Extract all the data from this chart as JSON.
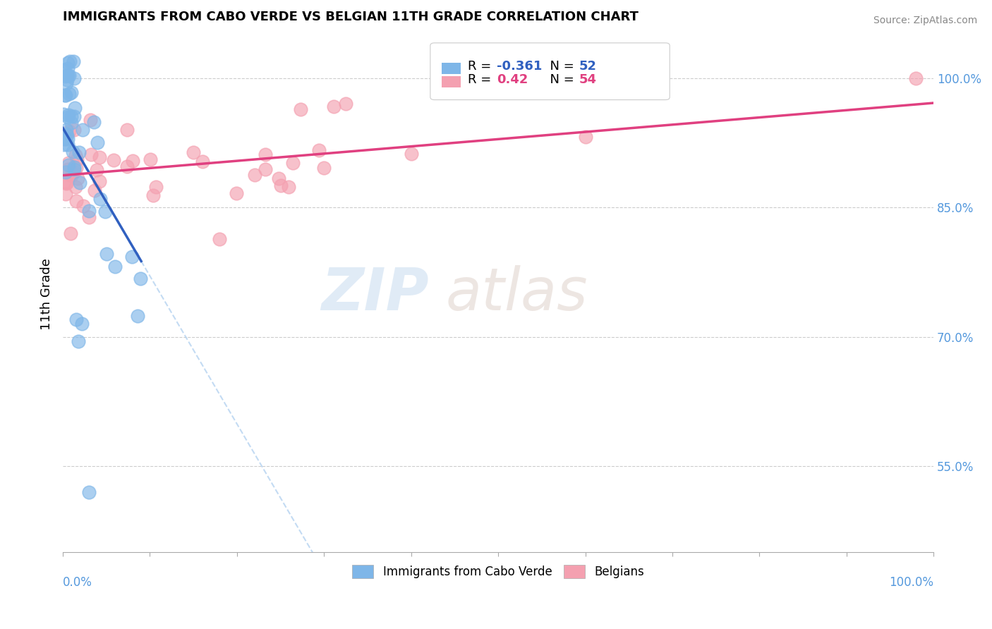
{
  "title": "IMMIGRANTS FROM CABO VERDE VS BELGIAN 11TH GRADE CORRELATION CHART",
  "source": "Source: ZipAtlas.com",
  "ylabel": "11th Grade",
  "ylabel_right_ticks": [
    0.55,
    0.7,
    0.85,
    1.0
  ],
  "ylabel_right_labels": [
    "55.0%",
    "70.0%",
    "85.0%",
    "100.0%"
  ],
  "blue_R": -0.361,
  "blue_N": 52,
  "pink_R": 0.42,
  "pink_N": 54,
  "blue_color": "#7EB6E8",
  "pink_color": "#F4A0B0",
  "blue_line_color": "#3060C0",
  "pink_line_color": "#E04080",
  "watermark_zip": "ZIP",
  "watermark_atlas": "atlas",
  "background_color": "#ffffff",
  "xlim": [
    0.0,
    1.0
  ],
  "ylim": [
    0.45,
    1.05
  ]
}
